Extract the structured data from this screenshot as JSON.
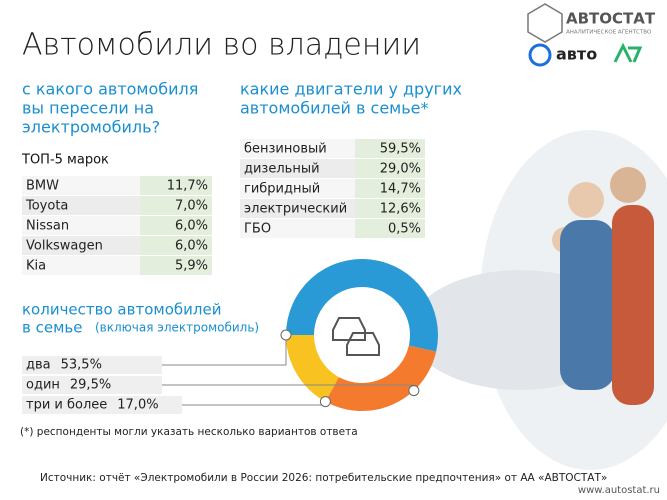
{
  "logo": {
    "name": "АВТОСТАТ",
    "tagline": "АНАЛИТИЧЕСКОЕ АГЕНТСТВО",
    "partner": "авто"
  },
  "title": "Автомобили во владении",
  "brands": {
    "question": [
      "с какого автомобиля",
      "вы пересели на",
      "электромобиль?"
    ],
    "header": "ТОП-5 марок",
    "rows": [
      [
        "BMW",
        "11,7%"
      ],
      [
        "Toyota",
        "7,0%"
      ],
      [
        "Nissan",
        "6,0%"
      ],
      [
        "Volkswagen",
        "6,0%"
      ],
      [
        "Kia",
        "5,9%"
      ]
    ]
  },
  "engines": {
    "question": [
      "какие двигатели у других",
      "автомобилей в семье*"
    ],
    "rows": [
      [
        "бензиновый",
        "59,5%"
      ],
      [
        "дизельный",
        "29,0%"
      ],
      [
        "гибридный",
        "14,7%"
      ],
      [
        "электрический",
        "12,6%"
      ],
      [
        "ГБО",
        "0,5%"
      ]
    ]
  },
  "donut": {
    "title": [
      "количество автомобилей",
      "в семье"
    ],
    "subtitle": "(включая электромобиль)",
    "segments": [
      {
        "name": "два",
        "value": 53.5,
        "label": "53,5%",
        "color": "#2a9ad6"
      },
      {
        "name": "один",
        "value": 29.5,
        "label": "29,5%",
        "color": "#f47b2e"
      },
      {
        "name": "три и более",
        "value": 17.0,
        "label": "17,0%",
        "color": "#f8c320"
      }
    ]
  },
  "footnote": "(*) респонденты могли указать несколько вариантов ответа",
  "source": "Источник: отчёт «Электромобили в России 2026: потребительские предпочтения» от АА «АВТОСТАТ»",
  "url": "www.autostat.ru"
}
